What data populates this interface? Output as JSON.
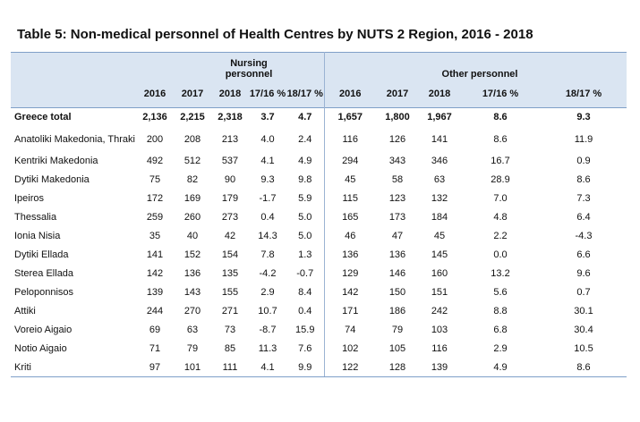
{
  "title": "Table 5: Non-medical personnel of Health Centres by NUTS 2 Region, 2016 - 2018",
  "groups": [
    "Nursing personnel",
    "Other personnel"
  ],
  "columns": [
    "2016",
    "2017",
    "2018",
    "17/16 %",
    "18/17 %"
  ],
  "rows": [
    {
      "name": "Greece total",
      "n": [
        "2,136",
        "2,215",
        "2,318",
        "3.7",
        "4.7"
      ],
      "o": [
        "1,657",
        "1,800",
        "1,967",
        "8.6",
        "9.3"
      ]
    },
    {
      "name": "Anatoliki Makedonia, Thraki",
      "n": [
        "200",
        "208",
        "213",
        "4.0",
        "2.4"
      ],
      "o": [
        "116",
        "126",
        "141",
        "8.6",
        "11.9"
      ]
    },
    {
      "name": "Kentriki Makedonia",
      "n": [
        "492",
        "512",
        "537",
        "4.1",
        "4.9"
      ],
      "o": [
        "294",
        "343",
        "346",
        "16.7",
        "0.9"
      ]
    },
    {
      "name": "Dytiki Makedonia",
      "n": [
        "75",
        "82",
        "90",
        "9.3",
        "9.8"
      ],
      "o": [
        "45",
        "58",
        "63",
        "28.9",
        "8.6"
      ]
    },
    {
      "name": "Ipeiros",
      "n": [
        "172",
        "169",
        "179",
        "-1.7",
        "5.9"
      ],
      "o": [
        "115",
        "123",
        "132",
        "7.0",
        "7.3"
      ]
    },
    {
      "name": "Thessalia",
      "n": [
        "259",
        "260",
        "273",
        "0.4",
        "5.0"
      ],
      "o": [
        "165",
        "173",
        "184",
        "4.8",
        "6.4"
      ]
    },
    {
      "name": "Ionia Nisia",
      "n": [
        "35",
        "40",
        "42",
        "14.3",
        "5.0"
      ],
      "o": [
        "46",
        "47",
        "45",
        "2.2",
        "-4.3"
      ]
    },
    {
      "name": "Dytiki Ellada",
      "n": [
        "141",
        "152",
        "154",
        "7.8",
        "1.3"
      ],
      "o": [
        "136",
        "136",
        "145",
        "0.0",
        "6.6"
      ]
    },
    {
      "name": "Sterea Ellada",
      "n": [
        "142",
        "136",
        "135",
        "-4.2",
        "-0.7"
      ],
      "o": [
        "129",
        "146",
        "160",
        "13.2",
        "9.6"
      ]
    },
    {
      "name": "Peloponnisos",
      "n": [
        "139",
        "143",
        "155",
        "2.9",
        "8.4"
      ],
      "o": [
        "142",
        "150",
        "151",
        "5.6",
        "0.7"
      ]
    },
    {
      "name": "Attiki",
      "n": [
        "244",
        "270",
        "271",
        "10.7",
        "0.4"
      ],
      "o": [
        "171",
        "186",
        "242",
        "8.8",
        "30.1"
      ]
    },
    {
      "name": "Voreio Aigaio",
      "n": [
        "69",
        "63",
        "73",
        "-8.7",
        "15.9"
      ],
      "o": [
        "74",
        "79",
        "103",
        "6.8",
        "30.4"
      ]
    },
    {
      "name": "Notio Aigaio",
      "n": [
        "71",
        "79",
        "85",
        "11.3",
        "7.6"
      ],
      "o": [
        "102",
        "105",
        "116",
        "2.9",
        "10.5"
      ]
    },
    {
      "name": "Kriti",
      "n": [
        "97",
        "101",
        "111",
        "4.1",
        "9.9"
      ],
      "o": [
        "122",
        "128",
        "139",
        "4.9",
        "8.6"
      ]
    }
  ],
  "colors": {
    "header_fill": "#dae5f2",
    "rule": "#7f9fc8"
  }
}
